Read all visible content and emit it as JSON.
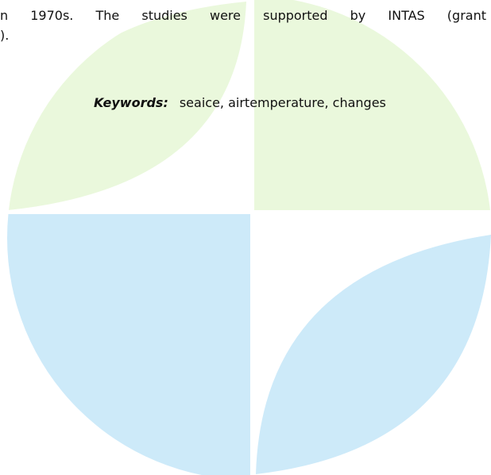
{
  "paragraph": {
    "lines": [
      "n 1970s. The studies were supported by INTAS (grant",
      ")."
    ]
  },
  "keywords": {
    "label": "Keywords:",
    "text": "seaice, airtemperature, changes"
  }
}
